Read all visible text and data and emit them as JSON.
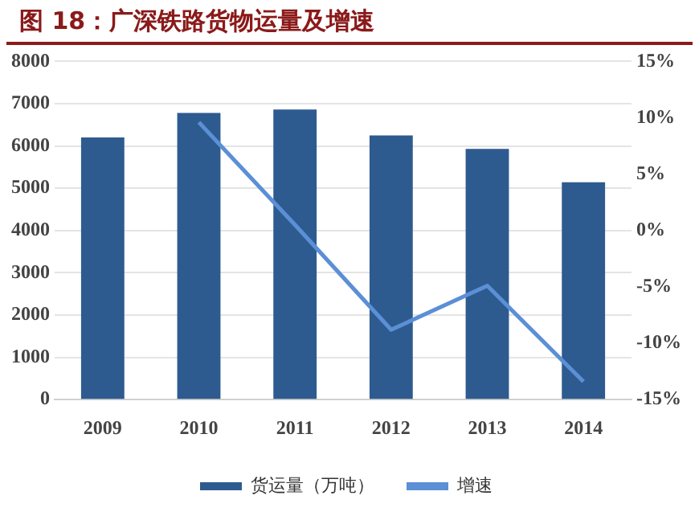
{
  "chart_data": {
    "type": "bar",
    "title": "图 18：广深铁路货物运量及增速",
    "categories": [
      "2009",
      "2010",
      "2011",
      "2012",
      "2013",
      "2014"
    ],
    "series": [
      {
        "name": "货运量（万吨）",
        "color": "#2e5b8f",
        "values": [
          6200,
          6780,
          6860,
          6250,
          5930,
          5140
        ]
      },
      {
        "name": "增速",
        "type": "line",
        "axis": "y2",
        "color": "#5b8fd6",
        "values": [
          null,
          9.6,
          0.5,
          -8.8,
          -4.9,
          -13.4
        ]
      }
    ],
    "ylim": [
      0,
      8000
    ],
    "yticks": [
      0,
      1000,
      2000,
      3000,
      4000,
      5000,
      6000,
      7000,
      8000
    ],
    "y2lim": [
      -15,
      15
    ],
    "y2ticks": [
      {
        "value": -15,
        "label": "-15%"
      },
      {
        "value": -10,
        "label": "-10%"
      },
      {
        "value": -5,
        "label": "-5%"
      },
      {
        "value": 0,
        "label": "0%"
      },
      {
        "value": 5,
        "label": "5%"
      },
      {
        "value": 10,
        "label": "10%"
      },
      {
        "value": 15,
        "label": "15%"
      }
    ],
    "grid": "y",
    "legend": "bottom",
    "marker": "none"
  }
}
